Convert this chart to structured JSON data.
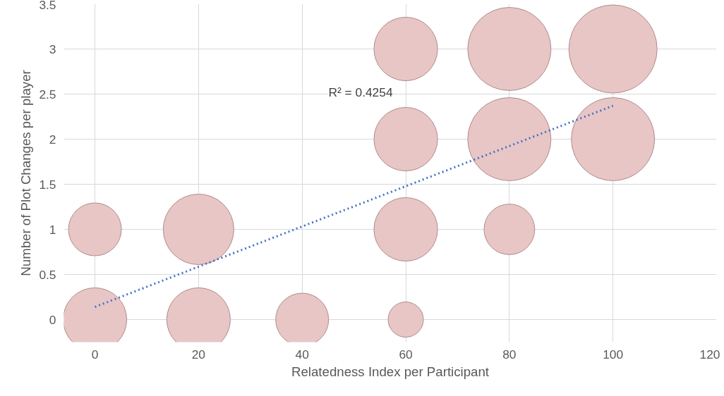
{
  "chart_data": {
    "type": "bubble",
    "xlabel": "Relatedness Index per Participant",
    "ylabel": "Number of Plot Changes per player",
    "xlim": [
      -6,
      120
    ],
    "xticks": [
      0,
      20,
      40,
      60,
      80,
      100,
      120
    ],
    "ylim": [
      -0.25,
      3.5
    ],
    "yticks": [
      0,
      0.5,
      1,
      1.5,
      2,
      2.5,
      3,
      3.5
    ],
    "grid": true,
    "series": [
      {
        "color": "#e8c6c6",
        "x": [
          0,
          20,
          40,
          60,
          0,
          20,
          60,
          80,
          60,
          80,
          100,
          60,
          80,
          100
        ],
        "values": [
          0,
          0,
          0,
          0,
          1,
          1,
          1,
          1,
          2,
          2,
          2,
          3,
          3,
          3
        ],
        "sizes": [
          0.52,
          0.52,
          0.36,
          0.16,
          0.36,
          0.64,
          0.52,
          0.33,
          0.52,
          0.89,
          0.89,
          0.52,
          0.89,
          1
        ]
      },
      {
        "type": "line",
        "color": "#4472c4",
        "line_style": "dotted",
        "x": [
          0,
          100
        ],
        "values": [
          0.14,
          2.37
        ]
      }
    ],
    "annotations": [
      "R² = 0.4254"
    ]
  }
}
